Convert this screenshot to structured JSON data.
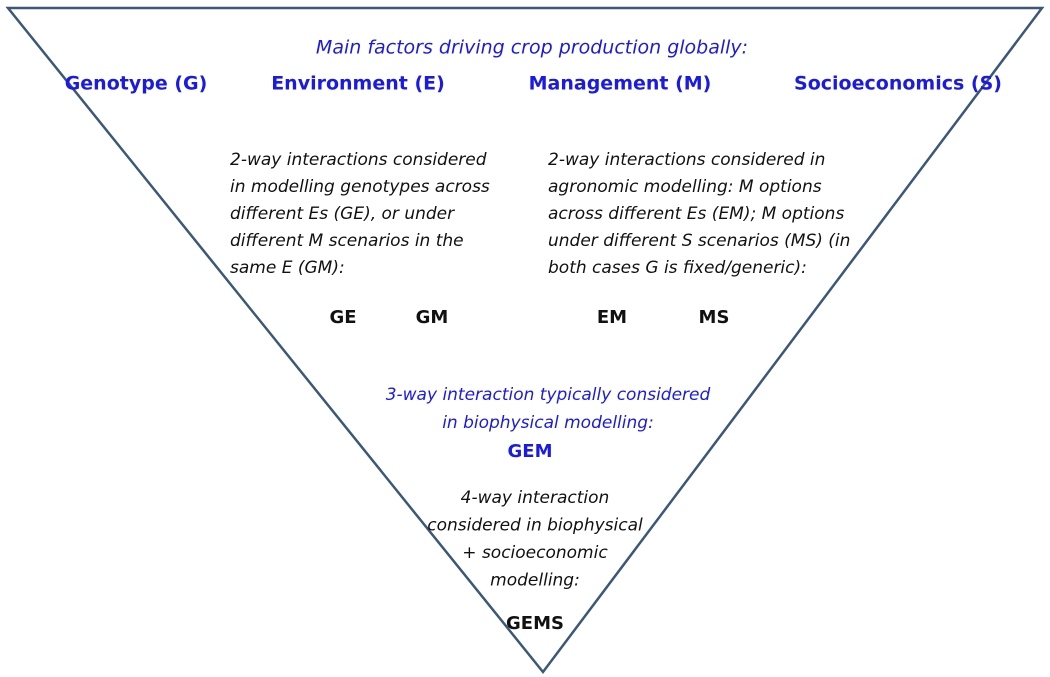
{
  "title": "Main factors driving crop production globally:",
  "factors": [
    "Genotype (G)",
    "Environment (E)",
    "Management (M)",
    "Socioeconomics (S)"
  ],
  "two_way": [
    {
      "lines": [
        "2-way interactions considered",
        "in modelling genotypes across",
        "different Es (GE), or under",
        "different M scenarios in the",
        "same E (GM):"
      ],
      "terms": [
        "GE",
        "GM"
      ]
    },
    {
      "lines": [
        "2-way interactions considered in",
        "agronomic modelling: M options",
        "across different Es (EM); M options",
        "under different S scenarios (MS) (in",
        "both cases G  is fixed/generic):"
      ],
      "terms": [
        "EM",
        "MS"
      ]
    }
  ],
  "three_way": {
    "lines": [
      "3-way interaction typically considered",
      "in biophysical modelling:"
    ],
    "term": "GEM"
  },
  "four_way": {
    "lines": [
      "4-way interaction",
      "considered in biophysical",
      "+ socioeconomic",
      "modelling:"
    ],
    "term": "GEMS"
  }
}
